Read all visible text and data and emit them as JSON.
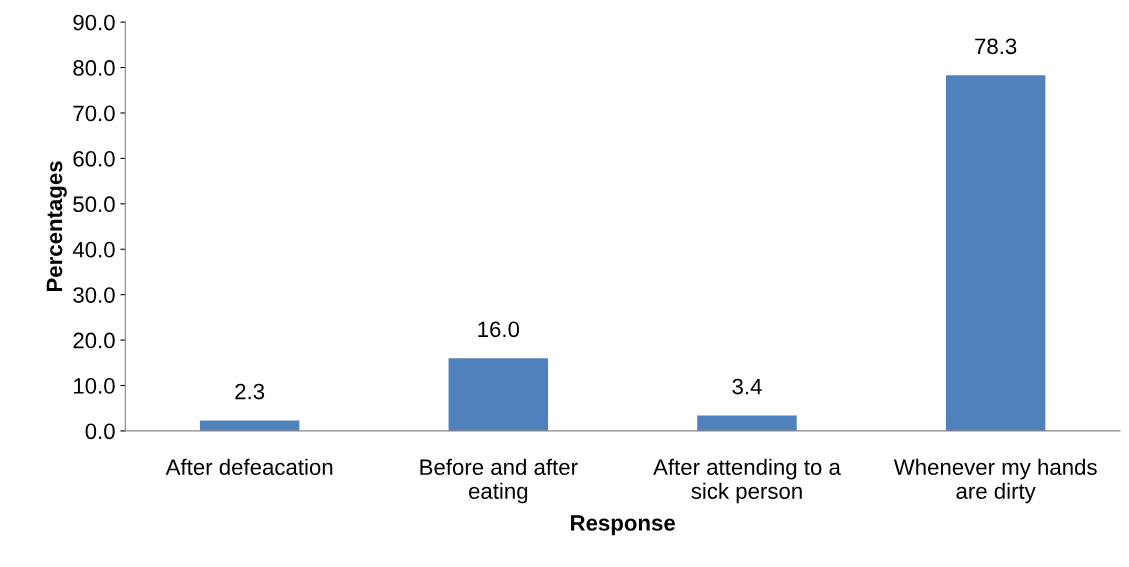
{
  "chart_data": {
    "type": "bar",
    "xlabel": "Response",
    "ylabel": "Percentages",
    "categories": [
      "After defeacation",
      "Before and after\neating",
      "After attending to a\nsick person",
      "Whenever my hands\nare dirty"
    ],
    "values": [
      2.3,
      16.0,
      3.4,
      78.3
    ],
    "color": "#4f81bd",
    "value_labels": [
      "2.3",
      "16.0",
      "3.4",
      "78.3"
    ],
    "ylim": [
      0,
      90
    ],
    "yticks": [
      {
        "value": 0,
        "label": "0.0"
      },
      {
        "value": 10,
        "label": "10.0"
      },
      {
        "value": 20,
        "label": "20.0"
      },
      {
        "value": 30,
        "label": "30.0"
      },
      {
        "value": 40,
        "label": "40.0"
      },
      {
        "value": 50,
        "label": "50.0"
      },
      {
        "value": 60,
        "label": "60.0"
      },
      {
        "value": 70,
        "label": "70.0"
      },
      {
        "value": 80,
        "label": "80.0"
      },
      {
        "value": 90,
        "label": "90.0"
      }
    ],
    "grid": false,
    "legend": false
  }
}
